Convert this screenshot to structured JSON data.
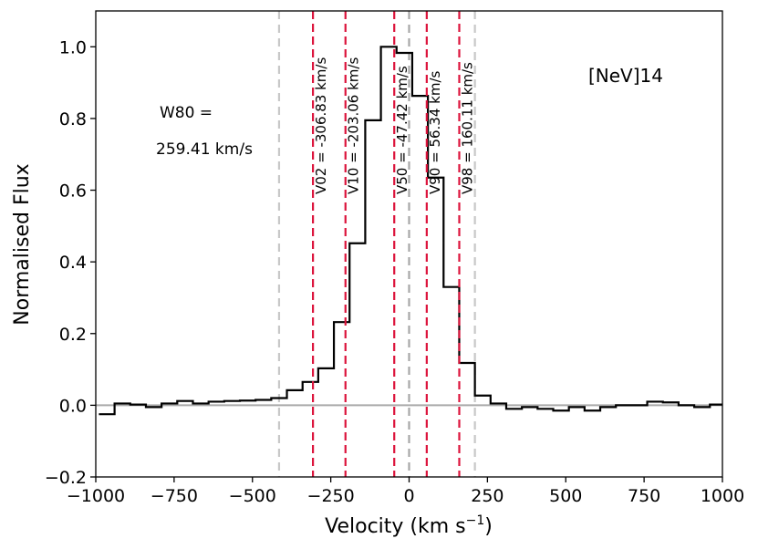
{
  "chart_data": {
    "type": "step",
    "title": "[NeV]14",
    "xlabel": "Velocity (km s",
    "xlabel_sup": "−1",
    "xlabel_close": ")",
    "ylabel": "Normalised Flux",
    "xlim": [
      -1000,
      1000
    ],
    "ylim": [
      -0.2,
      1.1
    ],
    "xticks": [
      -1000,
      -750,
      -500,
      -250,
      0,
      250,
      500,
      750,
      1000
    ],
    "xtick_labels": [
      "−1000",
      "−750",
      "−500",
      "−250",
      "0",
      "250",
      "500",
      "750",
      "1000"
    ],
    "yticks": [
      -0.2,
      0.0,
      0.2,
      0.4,
      0.6,
      0.8,
      1.0
    ],
    "ytick_labels": [
      "−0.2",
      "0.0",
      "0.2",
      "0.4",
      "0.6",
      "0.8",
      "1.0"
    ],
    "zero_line": 0.0,
    "series": [
      {
        "name": "flux",
        "color": "#000000",
        "edges": [
          -990,
          -940,
          -890,
          -840,
          -790,
          -740,
          -690,
          -640,
          -590,
          -540,
          -490,
          -440,
          -390,
          -340,
          -290,
          -240,
          -190,
          -140,
          -90,
          -40,
          10,
          60,
          110,
          160,
          210,
          260,
          310,
          360,
          410,
          460,
          510,
          560,
          610,
          660,
          710,
          760,
          810,
          860,
          910,
          960,
          1000
        ],
        "values": [
          -0.025,
          0.005,
          0.002,
          -0.005,
          0.005,
          0.012,
          0.005,
          0.01,
          0.012,
          0.013,
          0.015,
          0.02,
          0.042,
          0.065,
          0.103,
          0.232,
          0.452,
          0.795,
          1.0,
          0.983,
          0.863,
          0.635,
          0.33,
          0.118,
          0.027,
          0.005,
          -0.01,
          -0.005,
          -0.01,
          -0.015,
          -0.005,
          -0.015,
          -0.005,
          0.0,
          0.0,
          0.01,
          0.008,
          0.0,
          -0.005,
          0.002
        ]
      }
    ],
    "vlines": [
      {
        "x": -306.83,
        "color": "#dc143c",
        "label": "V02 = -306.83 km/s"
      },
      {
        "x": -203.06,
        "color": "#dc143c",
        "label": "V10 = -203.06 km/s"
      },
      {
        "x": -47.42,
        "color": "#dc143c",
        "label": "V50 = -47.42 km/s"
      },
      {
        "x": 56.34,
        "color": "#dc143c",
        "label": "V90 = 56.34 km/s"
      },
      {
        "x": 160.11,
        "color": "#dc143c",
        "label": "V98 = 160.11 km/s"
      }
    ],
    "grey_vlines": [
      {
        "x": -415,
        "color": "#c8c8c8"
      },
      {
        "x": 0,
        "color": "#a8a8a8"
      },
      {
        "x": 210,
        "color": "#c8c8c8"
      }
    ],
    "annotations": [
      "W80 =",
      "259.41 km/s"
    ]
  }
}
